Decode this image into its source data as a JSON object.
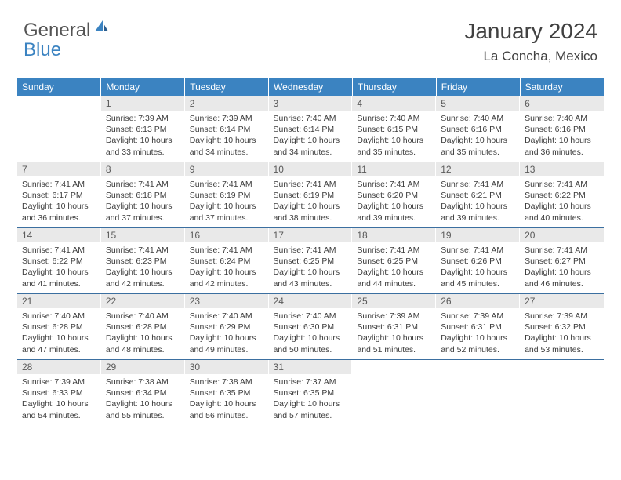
{
  "logo": {
    "part1": "General",
    "part2": "Blue"
  },
  "title": "January 2024",
  "location": "La Concha, Mexico",
  "colors": {
    "header_bg": "#3b83c1",
    "header_text": "#ffffff",
    "daynum_bg": "#e9e9e9",
    "daynum_text": "#5a5a5a",
    "border": "#3b6fa0",
    "body_text": "#3c3c3c",
    "logo_gray": "#545454",
    "logo_blue": "#3b83c1"
  },
  "weekdays": [
    "Sunday",
    "Monday",
    "Tuesday",
    "Wednesday",
    "Thursday",
    "Friday",
    "Saturday"
  ],
  "weeks": [
    [
      {
        "day": "",
        "lines": []
      },
      {
        "day": "1",
        "lines": [
          "Sunrise: 7:39 AM",
          "Sunset: 6:13 PM",
          "Daylight: 10 hours",
          "and 33 minutes."
        ]
      },
      {
        "day": "2",
        "lines": [
          "Sunrise: 7:39 AM",
          "Sunset: 6:14 PM",
          "Daylight: 10 hours",
          "and 34 minutes."
        ]
      },
      {
        "day": "3",
        "lines": [
          "Sunrise: 7:40 AM",
          "Sunset: 6:14 PM",
          "Daylight: 10 hours",
          "and 34 minutes."
        ]
      },
      {
        "day": "4",
        "lines": [
          "Sunrise: 7:40 AM",
          "Sunset: 6:15 PM",
          "Daylight: 10 hours",
          "and 35 minutes."
        ]
      },
      {
        "day": "5",
        "lines": [
          "Sunrise: 7:40 AM",
          "Sunset: 6:16 PM",
          "Daylight: 10 hours",
          "and 35 minutes."
        ]
      },
      {
        "day": "6",
        "lines": [
          "Sunrise: 7:40 AM",
          "Sunset: 6:16 PM",
          "Daylight: 10 hours",
          "and 36 minutes."
        ]
      }
    ],
    [
      {
        "day": "7",
        "lines": [
          "Sunrise: 7:41 AM",
          "Sunset: 6:17 PM",
          "Daylight: 10 hours",
          "and 36 minutes."
        ]
      },
      {
        "day": "8",
        "lines": [
          "Sunrise: 7:41 AM",
          "Sunset: 6:18 PM",
          "Daylight: 10 hours",
          "and 37 minutes."
        ]
      },
      {
        "day": "9",
        "lines": [
          "Sunrise: 7:41 AM",
          "Sunset: 6:19 PM",
          "Daylight: 10 hours",
          "and 37 minutes."
        ]
      },
      {
        "day": "10",
        "lines": [
          "Sunrise: 7:41 AM",
          "Sunset: 6:19 PM",
          "Daylight: 10 hours",
          "and 38 minutes."
        ]
      },
      {
        "day": "11",
        "lines": [
          "Sunrise: 7:41 AM",
          "Sunset: 6:20 PM",
          "Daylight: 10 hours",
          "and 39 minutes."
        ]
      },
      {
        "day": "12",
        "lines": [
          "Sunrise: 7:41 AM",
          "Sunset: 6:21 PM",
          "Daylight: 10 hours",
          "and 39 minutes."
        ]
      },
      {
        "day": "13",
        "lines": [
          "Sunrise: 7:41 AM",
          "Sunset: 6:22 PM",
          "Daylight: 10 hours",
          "and 40 minutes."
        ]
      }
    ],
    [
      {
        "day": "14",
        "lines": [
          "Sunrise: 7:41 AM",
          "Sunset: 6:22 PM",
          "Daylight: 10 hours",
          "and 41 minutes."
        ]
      },
      {
        "day": "15",
        "lines": [
          "Sunrise: 7:41 AM",
          "Sunset: 6:23 PM",
          "Daylight: 10 hours",
          "and 42 minutes."
        ]
      },
      {
        "day": "16",
        "lines": [
          "Sunrise: 7:41 AM",
          "Sunset: 6:24 PM",
          "Daylight: 10 hours",
          "and 42 minutes."
        ]
      },
      {
        "day": "17",
        "lines": [
          "Sunrise: 7:41 AM",
          "Sunset: 6:25 PM",
          "Daylight: 10 hours",
          "and 43 minutes."
        ]
      },
      {
        "day": "18",
        "lines": [
          "Sunrise: 7:41 AM",
          "Sunset: 6:25 PM",
          "Daylight: 10 hours",
          "and 44 minutes."
        ]
      },
      {
        "day": "19",
        "lines": [
          "Sunrise: 7:41 AM",
          "Sunset: 6:26 PM",
          "Daylight: 10 hours",
          "and 45 minutes."
        ]
      },
      {
        "day": "20",
        "lines": [
          "Sunrise: 7:41 AM",
          "Sunset: 6:27 PM",
          "Daylight: 10 hours",
          "and 46 minutes."
        ]
      }
    ],
    [
      {
        "day": "21",
        "lines": [
          "Sunrise: 7:40 AM",
          "Sunset: 6:28 PM",
          "Daylight: 10 hours",
          "and 47 minutes."
        ]
      },
      {
        "day": "22",
        "lines": [
          "Sunrise: 7:40 AM",
          "Sunset: 6:28 PM",
          "Daylight: 10 hours",
          "and 48 minutes."
        ]
      },
      {
        "day": "23",
        "lines": [
          "Sunrise: 7:40 AM",
          "Sunset: 6:29 PM",
          "Daylight: 10 hours",
          "and 49 minutes."
        ]
      },
      {
        "day": "24",
        "lines": [
          "Sunrise: 7:40 AM",
          "Sunset: 6:30 PM",
          "Daylight: 10 hours",
          "and 50 minutes."
        ]
      },
      {
        "day": "25",
        "lines": [
          "Sunrise: 7:39 AM",
          "Sunset: 6:31 PM",
          "Daylight: 10 hours",
          "and 51 minutes."
        ]
      },
      {
        "day": "26",
        "lines": [
          "Sunrise: 7:39 AM",
          "Sunset: 6:31 PM",
          "Daylight: 10 hours",
          "and 52 minutes."
        ]
      },
      {
        "day": "27",
        "lines": [
          "Sunrise: 7:39 AM",
          "Sunset: 6:32 PM",
          "Daylight: 10 hours",
          "and 53 minutes."
        ]
      }
    ],
    [
      {
        "day": "28",
        "lines": [
          "Sunrise: 7:39 AM",
          "Sunset: 6:33 PM",
          "Daylight: 10 hours",
          "and 54 minutes."
        ]
      },
      {
        "day": "29",
        "lines": [
          "Sunrise: 7:38 AM",
          "Sunset: 6:34 PM",
          "Daylight: 10 hours",
          "and 55 minutes."
        ]
      },
      {
        "day": "30",
        "lines": [
          "Sunrise: 7:38 AM",
          "Sunset: 6:35 PM",
          "Daylight: 10 hours",
          "and 56 minutes."
        ]
      },
      {
        "day": "31",
        "lines": [
          "Sunrise: 7:37 AM",
          "Sunset: 6:35 PM",
          "Daylight: 10 hours",
          "and 57 minutes."
        ]
      },
      {
        "day": "",
        "lines": []
      },
      {
        "day": "",
        "lines": []
      },
      {
        "day": "",
        "lines": []
      }
    ]
  ]
}
